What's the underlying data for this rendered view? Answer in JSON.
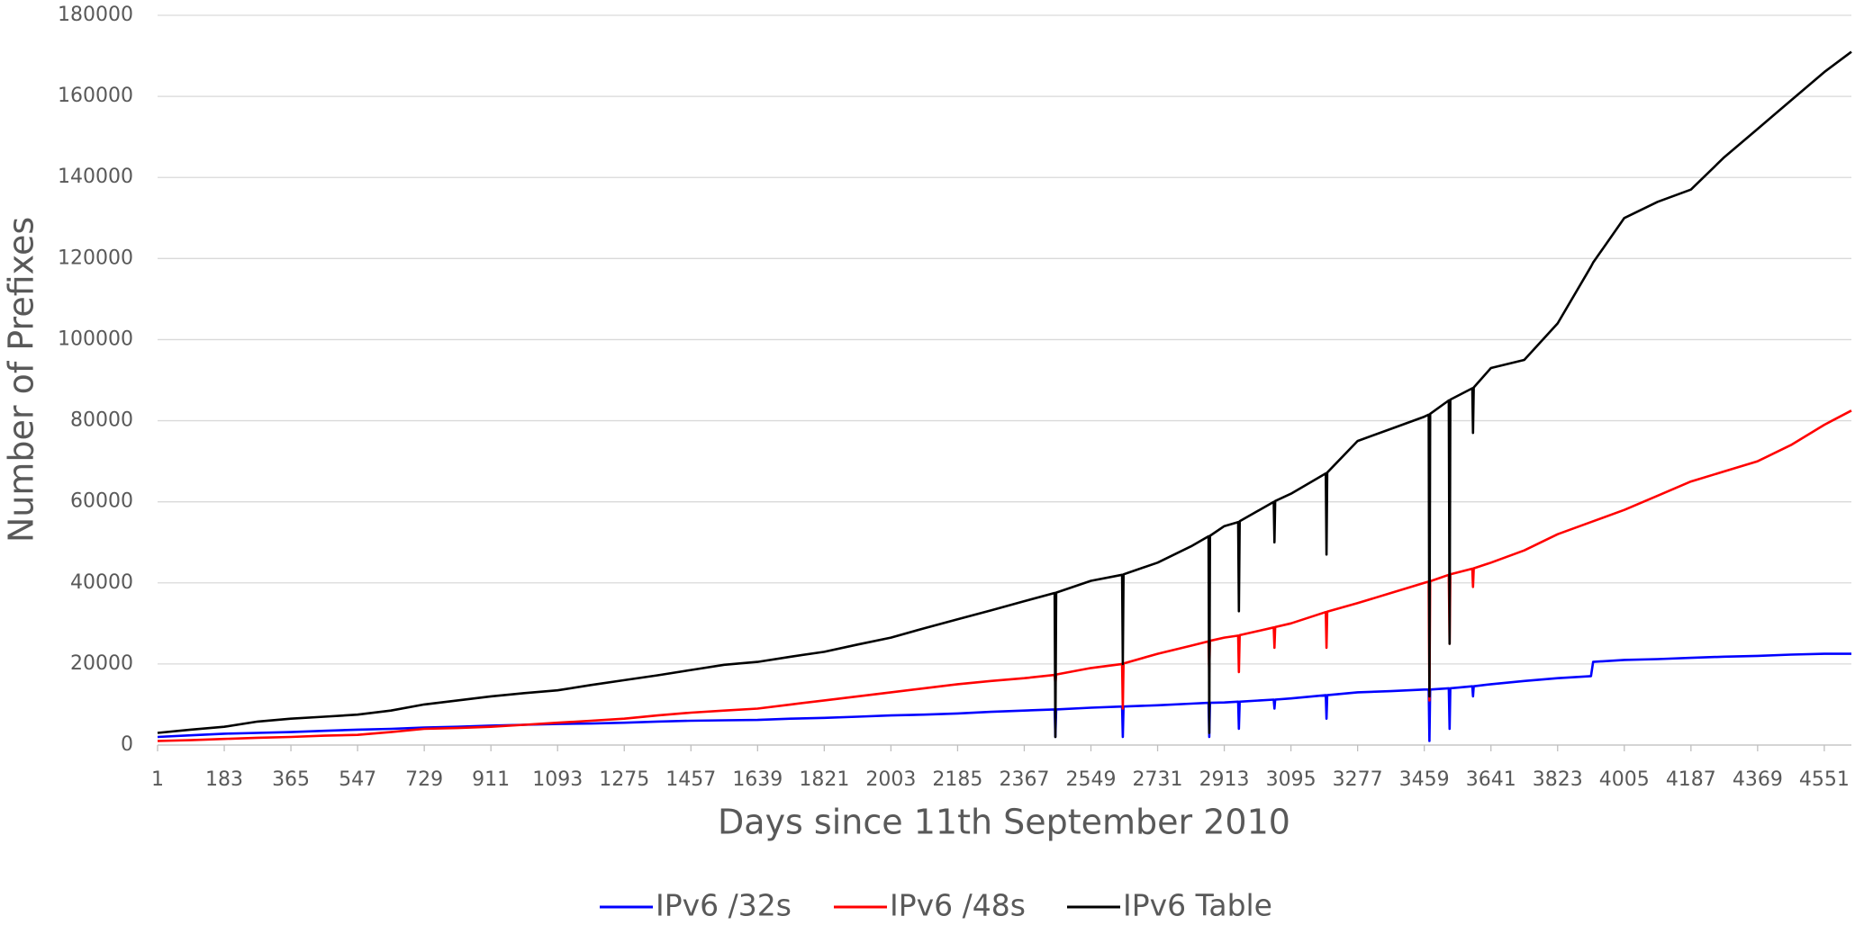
{
  "chart_data": {
    "type": "line",
    "x_label": "Days since 11th September 2010",
    "y_label": "Number of Prefixes",
    "x": [
      1,
      91,
      183,
      274,
      365,
      456,
      547,
      638,
      729,
      820,
      911,
      1002,
      1093,
      1184,
      1275,
      1366,
      1457,
      1548,
      1639,
      1730,
      1821,
      1912,
      2003,
      2094,
      2185,
      2276,
      2367,
      2450,
      2452,
      2454,
      2549,
      2634,
      2636,
      2638,
      2731,
      2822,
      2870,
      2872,
      2874,
      2913,
      2951,
      2953,
      2955,
      3048,
      3050,
      3052,
      3095,
      3190,
      3192,
      3194,
      3277,
      3368,
      3459,
      3471,
      3473,
      3475,
      3526,
      3528,
      3530,
      3590,
      3592,
      3594,
      3641,
      3732,
      3823,
      3914,
      3920,
      4005,
      4096,
      4187,
      4278,
      4369,
      4460,
      4551,
      4625
    ],
    "series": [
      {
        "name": "IPv6 /32s",
        "color": "#0000ff",
        "values": [
          2000,
          2400,
          2800,
          3000,
          3200,
          3500,
          3800,
          4000,
          4300,
          4500,
          4800,
          5000,
          5200,
          5300,
          5500,
          5800,
          6000,
          6100,
          6200,
          6500,
          6700,
          7000,
          7300,
          7500,
          7800,
          8200,
          8500,
          8800,
          2000,
          8800,
          9200,
          9500,
          2000,
          9500,
          9800,
          10200,
          10400,
          2000,
          10400,
          10500,
          10700,
          4000,
          10700,
          11200,
          9000,
          11200,
          11500,
          12300,
          6500,
          12300,
          13000,
          13300,
          13700,
          13700,
          1000,
          13700,
          14000,
          4000,
          14000,
          14500,
          12000,
          14500,
          15000,
          15800,
          16500,
          17000,
          20500,
          21000,
          21200,
          21500,
          21800,
          22000,
          22300,
          22500,
          22500
        ]
      },
      {
        "name": "IPv6 /48s",
        "color": "#ff0000",
        "values": [
          1000,
          1200,
          1500,
          1800,
          2000,
          2300,
          2500,
          3200,
          4000,
          4200,
          4500,
          5000,
          5500,
          6000,
          6500,
          7300,
          8000,
          8500,
          9000,
          10000,
          11000,
          12000,
          13000,
          14000,
          15000,
          15800,
          16500,
          17300,
          15000,
          17400,
          19000,
          20000,
          9000,
          20100,
          22500,
          24500,
          25600,
          18000,
          25700,
          26500,
          27000,
          18000,
          27100,
          29000,
          24000,
          29100,
          30000,
          32800,
          24000,
          32900,
          35000,
          37500,
          40000,
          40300,
          11000,
          40400,
          42000,
          25000,
          42100,
          43500,
          39000,
          43600,
          45000,
          48000,
          52000,
          55000,
          55200,
          58000,
          61500,
          65000,
          67500,
          70000,
          74000,
          79000,
          82500
        ]
      },
      {
        "name": "IPv6 Table",
        "color": "#000000",
        "values": [
          3000,
          3800,
          4500,
          5800,
          6500,
          7000,
          7500,
          8500,
          10000,
          11000,
          12000,
          12800,
          13500,
          14800,
          16000,
          17200,
          18500,
          19800,
          20500,
          21800,
          23000,
          24800,
          26500,
          28800,
          31000,
          33200,
          35500,
          37500,
          2000,
          37600,
          40500,
          42000,
          20000,
          42100,
          45000,
          49000,
          51500,
          3000,
          51600,
          54000,
          55000,
          33000,
          55200,
          60000,
          50000,
          60200,
          62000,
          67000,
          47000,
          67200,
          75000,
          78000,
          81000,
          81500,
          12000,
          81700,
          85000,
          25000,
          85200,
          88000,
          77000,
          88200,
          93000,
          95000,
          104000,
          118000,
          119000,
          130000,
          134000,
          137000,
          145000,
          152000,
          159000,
          166000,
          171000
        ]
      }
    ],
    "xlim": [
      1,
      4625
    ],
    "xticks": [
      1,
      183,
      365,
      547,
      729,
      911,
      1093,
      1275,
      1457,
      1639,
      1821,
      2003,
      2185,
      2367,
      2549,
      2731,
      2913,
      3095,
      3277,
      3459,
      3641,
      3823,
      4005,
      4187,
      4369,
      4551
    ],
    "ylim": [
      0,
      180000
    ],
    "yticks": [
      0,
      20000,
      40000,
      60000,
      80000,
      100000,
      120000,
      140000,
      160000,
      180000
    ],
    "grid": true,
    "legend": "bottom"
  }
}
